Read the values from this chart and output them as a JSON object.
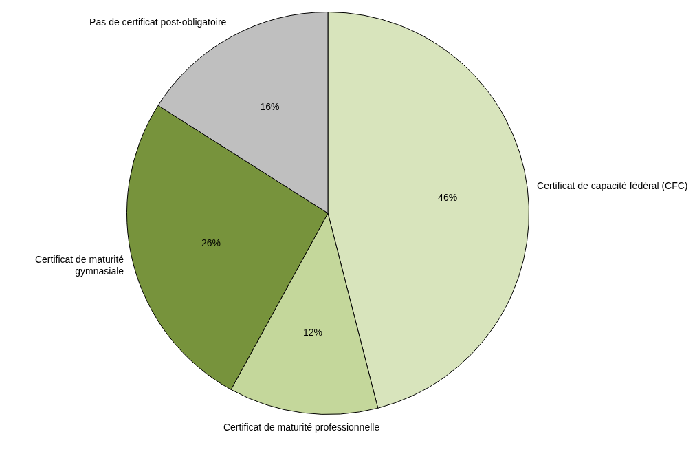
{
  "chart_data": {
    "type": "pie",
    "categories": [
      "Certificat de capacité fédéral (CFC)",
      "Certificat de maturité professionnelle",
      "Certificat de maturité gymnasiale",
      "Pas de certificat post-obligatoire"
    ],
    "values": [
      46,
      12,
      26,
      16
    ],
    "colors": [
      "#d8e4bc",
      "#c4d79b",
      "#77933c",
      "#bfbfbf"
    ],
    "value_labels": [
      "46%",
      "12%",
      "26%",
      "16%"
    ]
  }
}
